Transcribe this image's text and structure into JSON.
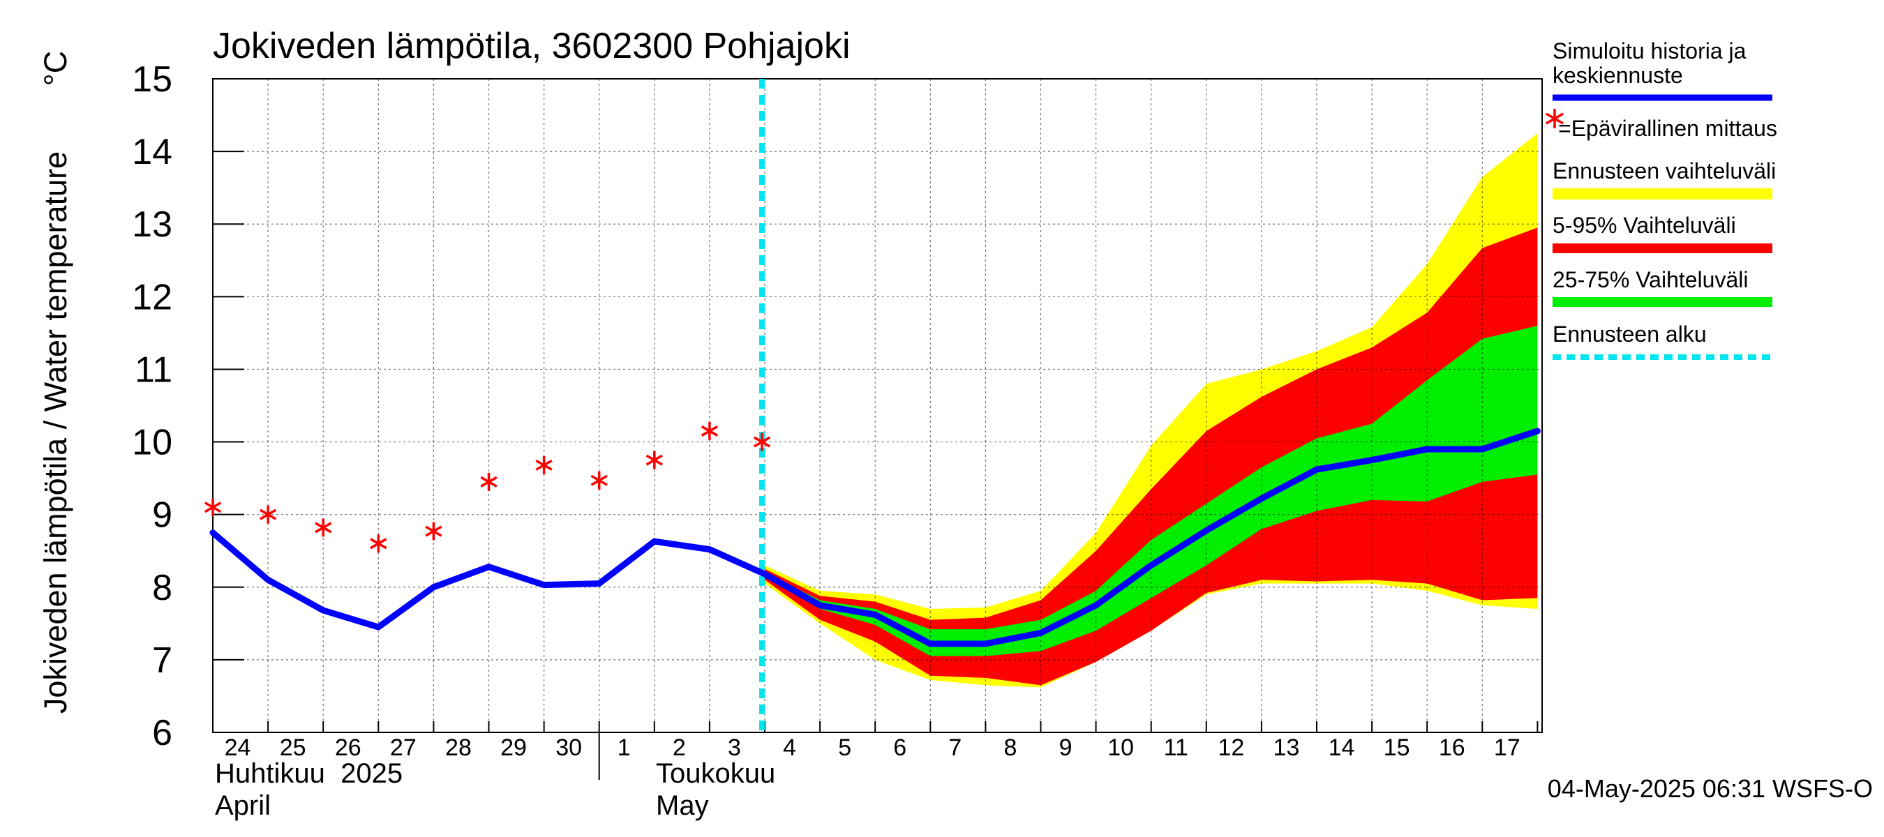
{
  "chart_data": {
    "type": "area",
    "title": "Jokiveden lämpötila, 3602300 Pohjajoki",
    "ylabel": "Jokiveden lämpötila / Water temperature",
    "yunit": "°C",
    "ylim": [
      6,
      15
    ],
    "yticks": [
      "6",
      "7",
      "8",
      "9",
      "10",
      "11",
      "12",
      "13",
      "14",
      "15"
    ],
    "x_dates": [
      "2025-04-24",
      "2025-04-25",
      "2025-04-26",
      "2025-04-27",
      "2025-04-28",
      "2025-04-29",
      "2025-04-30",
      "2025-05-01",
      "2025-05-02",
      "2025-05-03",
      "2025-05-04",
      "2025-05-05",
      "2025-05-06",
      "2025-05-07",
      "2025-05-08",
      "2025-05-09",
      "2025-05-10",
      "2025-05-11",
      "2025-05-12",
      "2025-05-13",
      "2025-05-14",
      "2025-05-15",
      "2025-05-16",
      "2025-05-17",
      "2025-05-18"
    ],
    "xlim": [
      "2025-04-24",
      "2025-05-18"
    ],
    "day_labels": [
      "24",
      "25",
      "26",
      "27",
      "28",
      "29",
      "30",
      "1",
      "2",
      "3",
      "4",
      "5",
      "6",
      "7",
      "8",
      "9",
      "10",
      "11",
      "12",
      "13",
      "14",
      "15",
      "16",
      "17"
    ],
    "month_labels": [
      {
        "fi": "Huhtikuu  2025",
        "en": "April"
      },
      {
        "fi": "Toukokuu",
        "en": "May"
      }
    ],
    "grid": true,
    "forecast_start": "2025-05-04",
    "forecast_dates": [
      "2025-05-04",
      "2025-05-05",
      "2025-05-06",
      "2025-05-07",
      "2025-05-08",
      "2025-05-09",
      "2025-05-10",
      "2025-05-11",
      "2025-05-12",
      "2025-05-13",
      "2025-05-14",
      "2025-05-15",
      "2025-05-16",
      "2025-05-17",
      "2025-05-18"
    ],
    "series": [
      {
        "name": "Simuloitu historia ja keskiennuste",
        "color": "#0000ff",
        "x": [
          "2025-04-24",
          "2025-04-25",
          "2025-04-26",
          "2025-04-27",
          "2025-04-28",
          "2025-04-29",
          "2025-04-30",
          "2025-05-01",
          "2025-05-02",
          "2025-05-03",
          "2025-05-04",
          "2025-05-05",
          "2025-05-06",
          "2025-05-07",
          "2025-05-08",
          "2025-05-09",
          "2025-05-10",
          "2025-05-11",
          "2025-05-12",
          "2025-05-13",
          "2025-05-14",
          "2025-05-15",
          "2025-05-16",
          "2025-05-17",
          "2025-05-18"
        ],
        "values": [
          8.75,
          8.1,
          7.68,
          7.45,
          8.0,
          8.28,
          8.03,
          8.05,
          8.63,
          8.52,
          8.18,
          7.75,
          7.62,
          7.22,
          7.22,
          7.37,
          7.75,
          8.3,
          8.78,
          9.22,
          9.62,
          9.75,
          9.9,
          9.9,
          10.15
        ]
      },
      {
        "name": "=Epävirallinen mittaus",
        "color": "#ff0000",
        "x": [
          "2025-04-24",
          "2025-04-25",
          "2025-04-26",
          "2025-04-27",
          "2025-04-28",
          "2025-04-29",
          "2025-04-30",
          "2025-05-01",
          "2025-05-02",
          "2025-05-03",
          "2025-05-04"
        ],
        "values": [
          9.1,
          9.0,
          8.82,
          8.6,
          8.77,
          9.45,
          9.68,
          9.47,
          9.75,
          10.15,
          10.0
        ]
      }
    ],
    "bands": [
      {
        "name": "Ennusteen vaihteluväli",
        "color": "#ffff00",
        "upper": [
          8.3,
          7.95,
          7.9,
          7.7,
          7.72,
          7.95,
          8.75,
          9.95,
          10.8,
          11.0,
          11.25,
          11.58,
          12.45,
          13.65,
          14.25
        ],
        "lower": [
          8.05,
          7.5,
          7.0,
          6.72,
          6.65,
          6.62,
          6.97,
          7.4,
          7.9,
          8.05,
          8.05,
          8.05,
          7.95,
          7.75,
          7.7
        ]
      },
      {
        "name": "5-95% Vaihteluväli",
        "color": "#ff0000",
        "upper": [
          8.25,
          7.88,
          7.8,
          7.55,
          7.58,
          7.82,
          8.5,
          9.35,
          10.15,
          10.62,
          11.0,
          11.3,
          11.78,
          12.67,
          12.95
        ],
        "lower": [
          8.1,
          7.55,
          7.25,
          6.78,
          6.75,
          6.65,
          6.97,
          7.4,
          7.92,
          8.1,
          8.08,
          8.1,
          8.05,
          7.82,
          7.85
        ]
      },
      {
        "name": "25-75% Vaihteluväli",
        "color": "#00ee00",
        "upper": [
          8.2,
          7.82,
          7.7,
          7.42,
          7.42,
          7.55,
          7.95,
          8.65,
          9.15,
          9.65,
          10.05,
          10.25,
          10.85,
          11.42,
          11.6
        ],
        "lower": [
          8.15,
          7.7,
          7.48,
          7.05,
          7.05,
          7.12,
          7.4,
          7.85,
          8.3,
          8.8,
          9.05,
          9.2,
          9.18,
          9.45,
          9.55
        ]
      }
    ],
    "legend": {
      "placement": "right",
      "entries": [
        {
          "label": "Simuloitu historia ja keskiennuste",
          "kind": "line",
          "color": "#0000ff"
        },
        {
          "label": "=Epävirallinen mittaus",
          "kind": "marker",
          "color": "#ff0000"
        },
        {
          "label": "Ennusteen vaihteluväli",
          "kind": "band",
          "color": "#ffff00"
        },
        {
          "label": "5-95% Vaihteluväli",
          "kind": "band",
          "color": "#ff0000"
        },
        {
          "label": "25-75% Vaihteluväli",
          "kind": "band",
          "color": "#00ee00"
        },
        {
          "label": "Ennusteen alku",
          "kind": "dashed",
          "color": "#00e5ee"
        }
      ]
    },
    "footer": "04-May-2025 06:31 WSFS-O"
  }
}
